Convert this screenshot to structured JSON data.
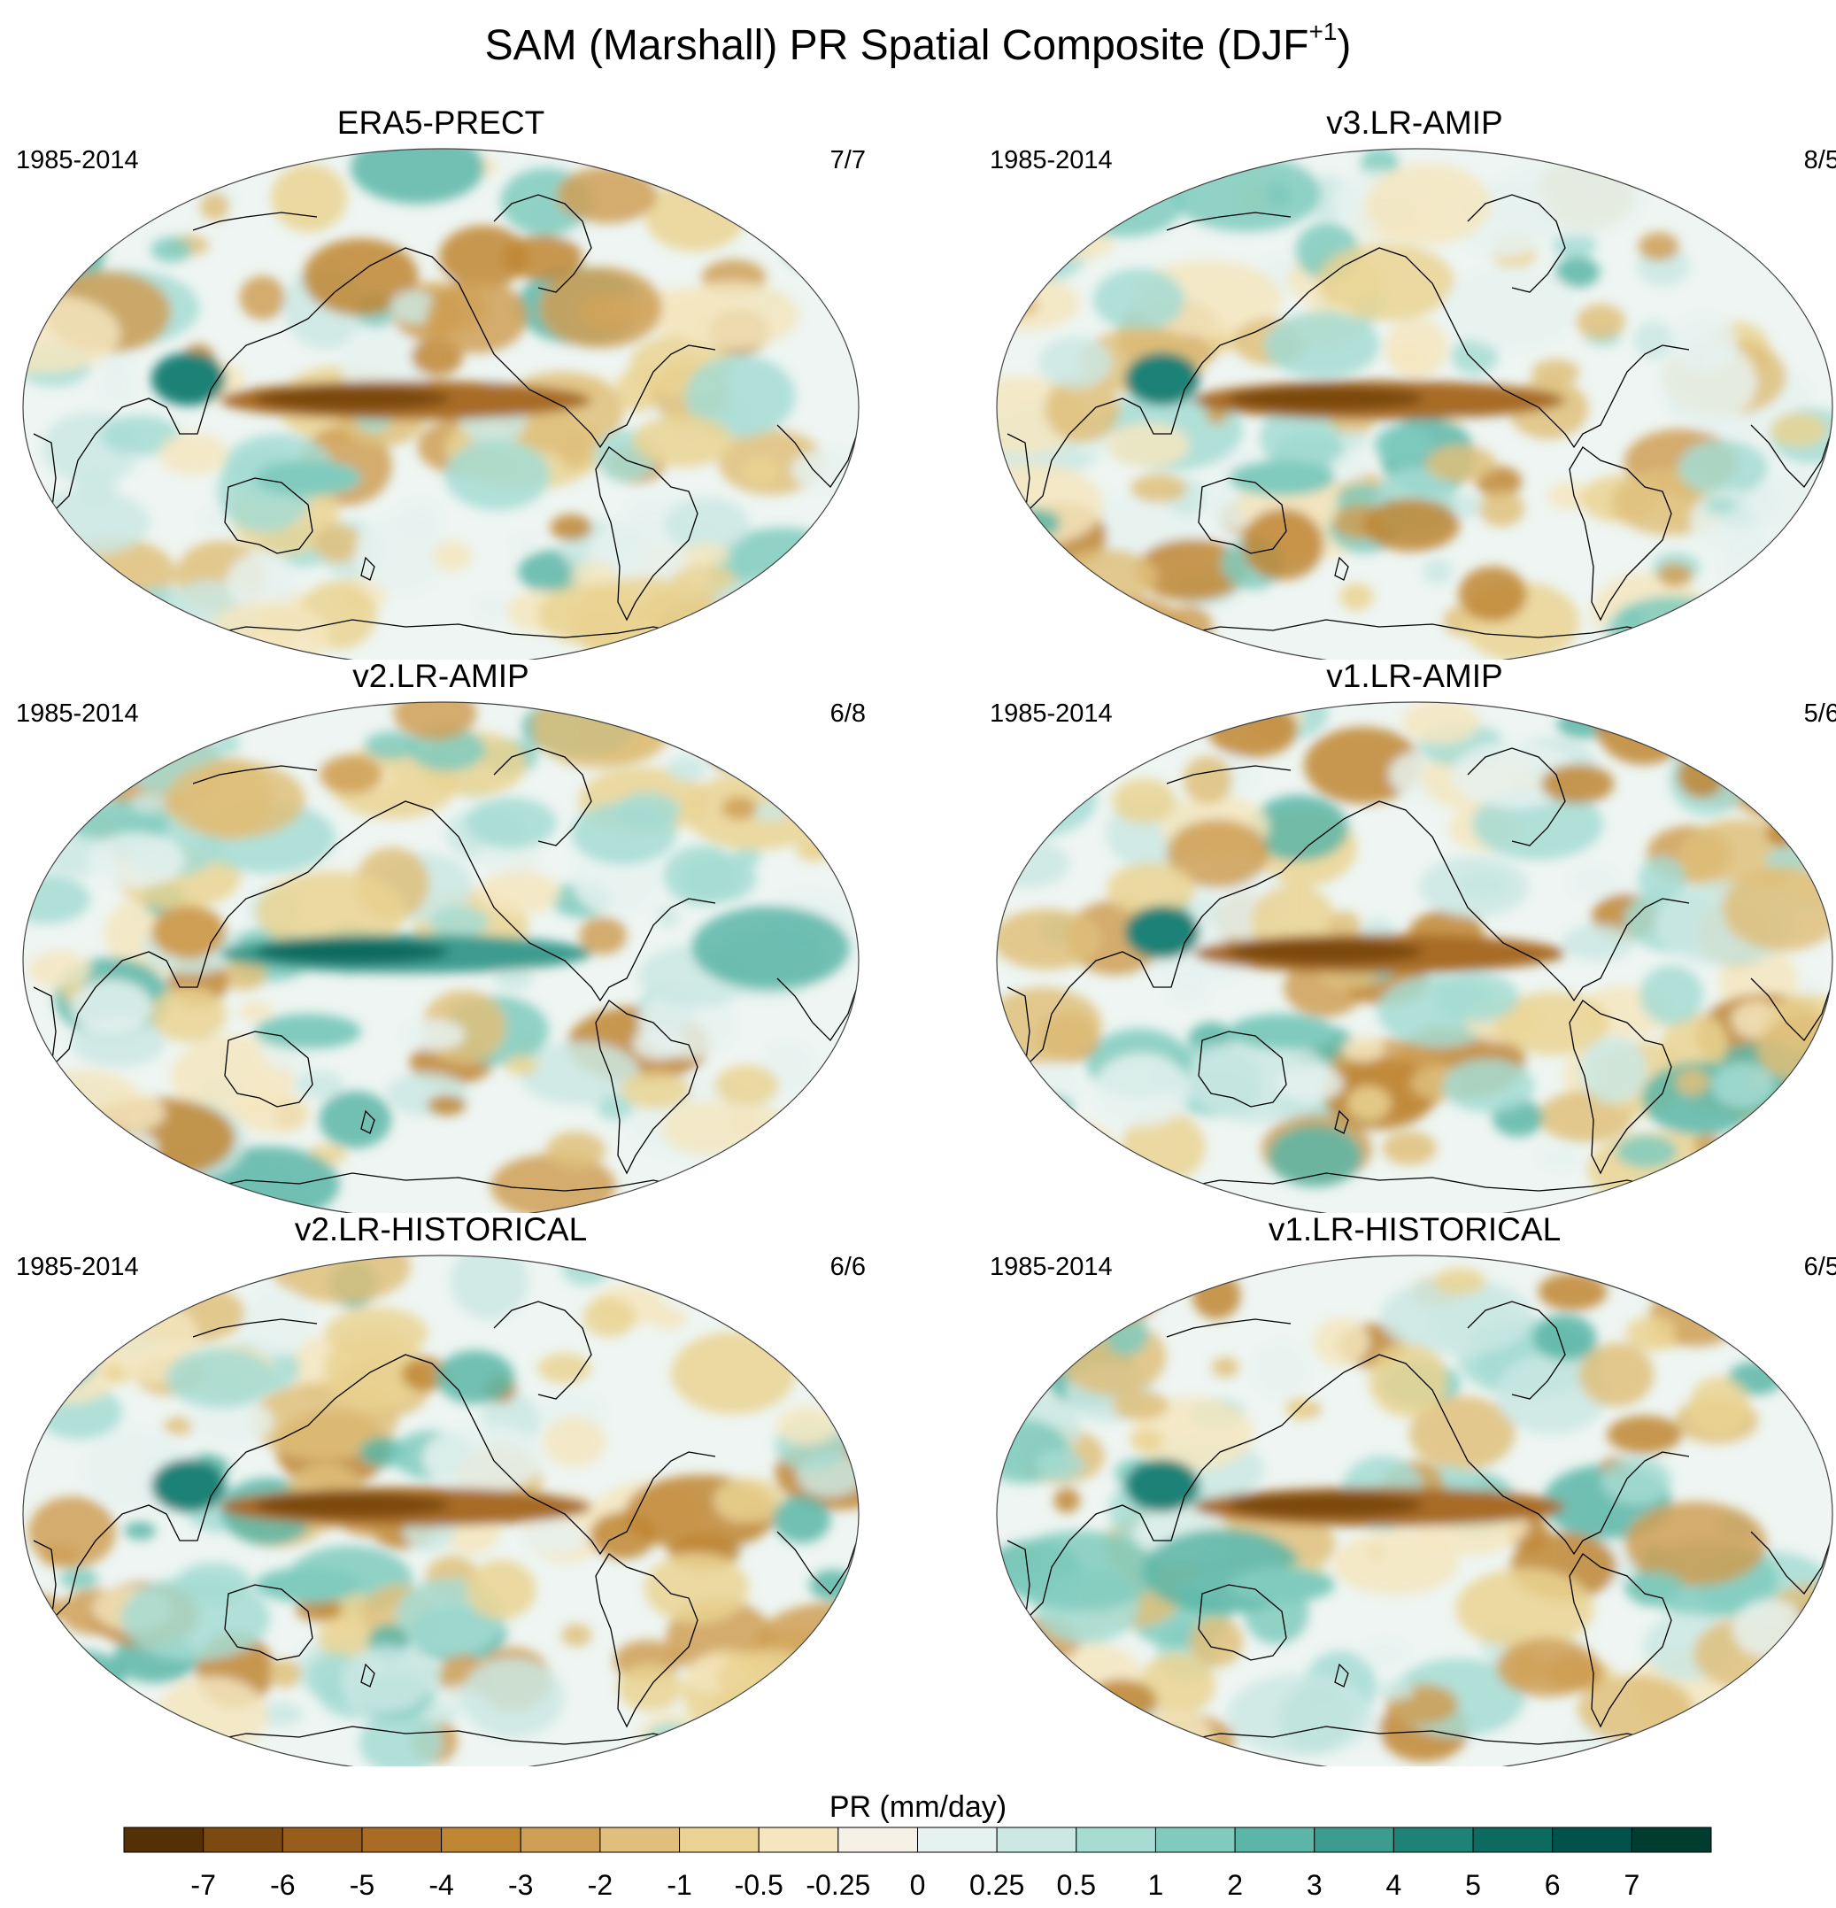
{
  "title": {
    "main": "SAM (Marshall) PR Spatial Composite (DJF",
    "superscript": "+1",
    "close": ")"
  },
  "panels": [
    {
      "title": "ERA5-PRECT",
      "period": "1985-2014",
      "count": "7/7",
      "seed": 11,
      "band": "dry"
    },
    {
      "title": "v3.LR-AMIP",
      "period": "1985-2014",
      "count": "8/5",
      "seed": 23,
      "band": "dry"
    },
    {
      "title": "v2.LR-AMIP",
      "period": "1985-2014",
      "count": "6/8",
      "seed": 37,
      "band": "wet"
    },
    {
      "title": "v1.LR-AMIP",
      "period": "1985-2014",
      "count": "5/6",
      "seed": 41,
      "band": "dry"
    },
    {
      "title": "v2.LR-HISTORICAL",
      "period": "1985-2014",
      "count": "6/6",
      "seed": 53,
      "band": "dry"
    },
    {
      "title": "v1.LR-HISTORICAL",
      "period": "1985-2014",
      "count": "6/5",
      "seed": 67,
      "band": "dry"
    }
  ],
  "colorbar": {
    "title": "PR (mm/day)",
    "labels": [
      "-7",
      "-6",
      "-5",
      "-4",
      "-3",
      "-2",
      "-1",
      "-0.5",
      "-0.25",
      "0",
      "0.25",
      "0.5",
      "1",
      "2",
      "3",
      "4",
      "5",
      "6",
      "7"
    ],
    "colors": [
      "#543005",
      "#7a4a10",
      "#975d1d",
      "#a86c25",
      "#bf8634",
      "#cf9f55",
      "#dfbf7b",
      "#ead393",
      "#f5e6c0",
      "#f6f1e7",
      "#e6f2f0",
      "#cbe8e3",
      "#a6dcd3",
      "#80cbbe",
      "#5cb6a8",
      "#3c9c8f",
      "#1f8277",
      "#0d6a5e",
      "#01524a",
      "#003c30"
    ]
  }
}
